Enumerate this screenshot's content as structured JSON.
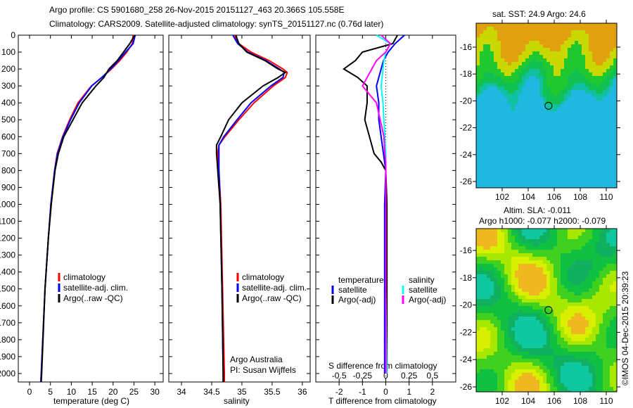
{
  "title_line1": "Argo profile: CS 5901680_258 26-Nov-2015 20151127_463 20.366S 105.558E",
  "title_line2": "Climatology: CARS2009. Satellite-adjusted climatology: synTS_20151127.nc (0.76d later)",
  "colors": {
    "climatology": "#ff0000",
    "satellite": "#0000ff",
    "argo": "#000000",
    "sal_satellite": "#00ffff",
    "sal_argo": "#ff00ff"
  },
  "chart_data": [
    {
      "type": "line",
      "name": "temperature",
      "xlabel": "temperature (deg C)",
      "ylabel": "depth",
      "xlim": [
        -2.7,
        32
      ],
      "ylim": [
        2050,
        0
      ],
      "xticks": [
        0,
        5,
        10,
        15,
        20,
        25,
        30
      ],
      "yticks": [
        0,
        100,
        200,
        300,
        400,
        500,
        600,
        700,
        800,
        900,
        1000,
        1100,
        1200,
        1300,
        1400,
        1500,
        1600,
        1700,
        1800,
        1900,
        2000
      ],
      "legend": [
        "climatology",
        "satellite-adj. clim.",
        "Argo(..raw -QC)"
      ],
      "depth": [
        0,
        50,
        100,
        150,
        200,
        250,
        300,
        400,
        500,
        600,
        700,
        800,
        1000,
        1200,
        1500,
        2000,
        2050
      ],
      "series": [
        {
          "name": "climatology",
          "values": [
            24.8,
            24.6,
            23.3,
            21.6,
            19.6,
            17.3,
            14.8,
            11.6,
            9.6,
            7.9,
            6.6,
            6.0,
            5.1,
            4.5,
            3.7,
            2.8,
            2.7
          ]
        },
        {
          "name": "satellite-adj. clim.",
          "values": [
            25.3,
            24.8,
            23.0,
            21.3,
            19.4,
            17.3,
            14.9,
            11.9,
            9.8,
            8.0,
            6.7,
            6.0,
            5.1,
            4.5,
            3.7,
            2.8,
            2.7
          ]
        },
        {
          "name": "Argo(..raw -QC)",
          "values": [
            25.2,
            24.0,
            22.5,
            21.0,
            19.0,
            17.8,
            15.9,
            12.6,
            10.4,
            8.2,
            6.9,
            6.1,
            5.2,
            4.5,
            3.7,
            2.9,
            2.8
          ]
        }
      ]
    },
    {
      "type": "line",
      "name": "salinity",
      "xlabel": "salinity",
      "xlim": [
        33.79,
        36.13
      ],
      "ylim": [
        2050,
        0
      ],
      "xticks": [
        34,
        34.5,
        35,
        35.5,
        36
      ],
      "legend": [
        "climatology",
        "satellite-adj. clim.",
        "Argo(..raw -QC)"
      ],
      "annotation": [
        "Argo Australia",
        "PI: Susan Wijffels"
      ],
      "depth": [
        0,
        50,
        100,
        150,
        200,
        220,
        250,
        300,
        400,
        500,
        600,
        650,
        700,
        800,
        1000,
        1500,
        2000,
        2050
      ],
      "series": [
        {
          "name": "climatology",
          "values": [
            34.88,
            34.95,
            35.15,
            35.45,
            35.68,
            35.75,
            35.72,
            35.52,
            35.2,
            34.95,
            34.72,
            34.62,
            34.6,
            34.62,
            34.65,
            34.68,
            34.71,
            34.71
          ]
        },
        {
          "name": "satellite-adj. clim.",
          "values": [
            34.85,
            34.93,
            35.1,
            35.4,
            35.62,
            35.7,
            35.68,
            35.48,
            35.15,
            34.92,
            34.7,
            34.62,
            34.62,
            34.62,
            34.64,
            34.67,
            34.69,
            34.69
          ]
        },
        {
          "name": "Argo(..raw -QC)",
          "values": [
            34.9,
            34.95,
            35.08,
            35.38,
            35.6,
            35.72,
            35.6,
            35.35,
            35.0,
            34.78,
            34.65,
            34.58,
            34.58,
            34.6,
            34.64,
            34.67,
            34.69,
            34.69
          ]
        }
      ]
    },
    {
      "type": "line",
      "name": "difference",
      "xlabel": "T difference from climatology",
      "x2label": "S difference from climatology",
      "xlim": [
        -3,
        3
      ],
      "xticks": [
        -2,
        -1,
        0,
        1,
        2
      ],
      "x2ticks": [
        -0.5,
        -0.25,
        0,
        0.25,
        0.5
      ],
      "x2tick_labels": [
        "-0.5",
        "-0.25",
        "0",
        "0.25",
        "0.5"
      ],
      "ylim": [
        2050,
        0
      ],
      "legend_temperature": {
        "heading": "temperature",
        "items": [
          "satellite",
          "Argo(-adj)"
        ]
      },
      "legend_salinity": {
        "heading": "salinity",
        "items": [
          "satellite",
          "Argo(-adj)"
        ]
      },
      "depth": [
        0,
        50,
        100,
        150,
        200,
        250,
        300,
        400,
        500,
        600,
        700,
        750,
        800,
        1000,
        1500,
        2000
      ],
      "series": [
        {
          "name": "temperature satellite",
          "units": "T",
          "values": [
            0.8,
            0.4,
            0.1,
            -0.1,
            -0.2,
            -0.3,
            -0.4,
            -0.3,
            -0.3,
            -0.2,
            -0.1,
            -0.05,
            0,
            -0.05,
            -0.05,
            -0.05
          ]
        },
        {
          "name": "temperature Argo(-adj)",
          "units": "T",
          "values": [
            0.5,
            0.3,
            -1.0,
            -1.3,
            -1.8,
            -1.2,
            -0.8,
            -0.8,
            -0.9,
            -0.7,
            -0.5,
            -0.2,
            0,
            0.05,
            0.05,
            0.05
          ]
        },
        {
          "name": "salinity satellite",
          "units": "S",
          "values": [
            -0.1,
            0.05,
            0.0,
            -0.02,
            -0.03,
            -0.04,
            -0.05,
            -0.03,
            -0.02,
            -0.01,
            0,
            0,
            0,
            0,
            0,
            0.01
          ]
        },
        {
          "name": "salinity Argo(-adj)",
          "units": "S",
          "values": [
            -0.05,
            0.05,
            0.0,
            -0.1,
            -0.15,
            -0.2,
            -0.25,
            -0.1,
            -0.06,
            -0.02,
            -0.01,
            0,
            0,
            0,
            0,
            0
          ]
        }
      ]
    }
  ],
  "maps": [
    {
      "title": "sat. SST: 24.9 Argo: 24.6",
      "xticks": [
        "102",
        "104",
        "106",
        "108",
        "110"
      ],
      "yticks": [
        "-16",
        "-18",
        "-20",
        "-22",
        "-24",
        "-26"
      ],
      "float_lon": 105.558,
      "float_lat": -20.366
    },
    {
      "title_line1": "Altim. SLA: -0.011",
      "title_line2": "Argo h1000: -0.077 h2000: -0.079",
      "xticks": [
        "102",
        "104",
        "106",
        "108",
        "110"
      ],
      "yticks": [
        "-16",
        "-18",
        "-20",
        "-22",
        "-24",
        "-26"
      ],
      "float_lon": 105.558,
      "float_lat": -20.366
    }
  ],
  "credit": "©IMOS 04-Dec-2015 20:39:23"
}
